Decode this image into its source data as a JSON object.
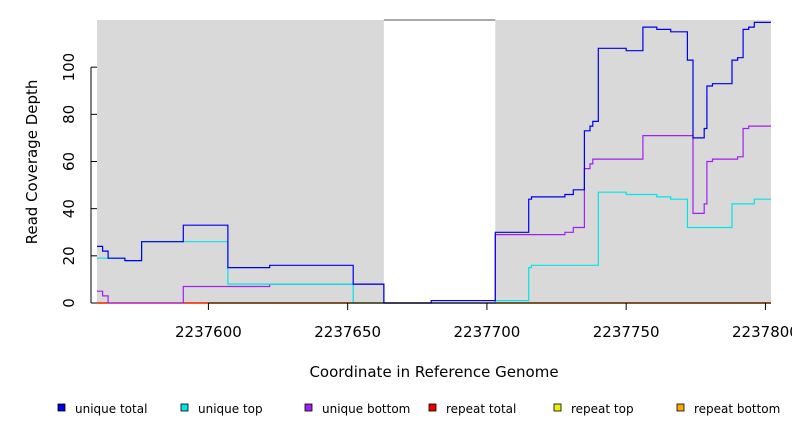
{
  "chart_data": {
    "type": "line",
    "step": true,
    "title": "",
    "xlabel": "Coordinate in Reference Genome",
    "ylabel": "Read Coverage Depth",
    "xlim": [
      2237560,
      2237802
    ],
    "ylim": [
      0,
      120
    ],
    "xticks": [
      2237600,
      2237650,
      2237700,
      2237750,
      2237800
    ],
    "yticks": [
      0,
      20,
      40,
      60,
      80,
      100
    ],
    "grid": false,
    "background": {
      "panel_color": "#d9d9d9",
      "clear_range": [
        2237663,
        2237703
      ]
    },
    "legend_position": "bottom",
    "series": [
      {
        "name": "unique total",
        "color": "#0000ee",
        "x": [
          2237560,
          2237562,
          2237564,
          2237570,
          2237576,
          2237584,
          2237589,
          2237591,
          2237596,
          2237607,
          2237609,
          2237615,
          2237622,
          2237643,
          2237648,
          2237652,
          2237663,
          2237668,
          2237680,
          2237688,
          2237697,
          2237703,
          2237712,
          2237715,
          2237716,
          2237728,
          2237731,
          2237735,
          2237737,
          2237738,
          2237740,
          2237742,
          2237750,
          2237756,
          2237761,
          2237766,
          2237772,
          2237774,
          2237778,
          2237779,
          2237781,
          2237782,
          2237788,
          2237790,
          2237792,
          2237794,
          2237796,
          2237802
        ],
        "y": [
          24,
          22,
          19,
          18,
          26,
          26,
          26,
          33,
          33,
          15,
          15,
          15,
          16,
          16,
          16,
          8,
          0,
          0,
          1,
          1,
          1,
          30,
          30,
          44,
          45,
          46,
          48,
          73,
          75,
          77,
          108,
          108,
          107,
          117,
          116,
          115,
          103,
          70,
          74,
          92,
          93,
          93,
          103,
          104,
          116,
          117,
          119,
          119
        ]
      },
      {
        "name": "unique top",
        "color": "#00e5e5",
        "x": [
          2237560,
          2237562,
          2237564,
          2237570,
          2237576,
          2237584,
          2237589,
          2237591,
          2237596,
          2237607,
          2237609,
          2237615,
          2237622,
          2237643,
          2237648,
          2237652,
          2237663,
          2237668,
          2237680,
          2237688,
          2237697,
          2237703,
          2237712,
          2237715,
          2237716,
          2237728,
          2237731,
          2237735,
          2237737,
          2237738,
          2237740,
          2237742,
          2237750,
          2237756,
          2237761,
          2237766,
          2237772,
          2237774,
          2237778,
          2237779,
          2237781,
          2237782,
          2237788,
          2237790,
          2237792,
          2237794,
          2237796,
          2237802
        ],
        "y": [
          19,
          19,
          19,
          18,
          26,
          26,
          26,
          26,
          26,
          8,
          8,
          8,
          8,
          8,
          8,
          0,
          0,
          0,
          0,
          0,
          0,
          1,
          1,
          15,
          16,
          16,
          16,
          16,
          16,
          16,
          47,
          47,
          46,
          46,
          45,
          44,
          32,
          32,
          32,
          32,
          32,
          32,
          42,
          42,
          42,
          42,
          44,
          44
        ]
      },
      {
        "name": "unique bottom",
        "color": "#a020f0",
        "x": [
          2237560,
          2237562,
          2237564,
          2237570,
          2237576,
          2237584,
          2237589,
          2237591,
          2237596,
          2237607,
          2237609,
          2237615,
          2237622,
          2237643,
          2237648,
          2237652,
          2237663,
          2237668,
          2237680,
          2237688,
          2237697,
          2237703,
          2237712,
          2237715,
          2237716,
          2237728,
          2237731,
          2237735,
          2237737,
          2237738,
          2237740,
          2237742,
          2237750,
          2237756,
          2237761,
          2237766,
          2237772,
          2237774,
          2237778,
          2237779,
          2237781,
          2237782,
          2237788,
          2237790,
          2237792,
          2237794,
          2237796,
          2237802
        ],
        "y": [
          5,
          3,
          0,
          0,
          0,
          0,
          0,
          7,
          7,
          7,
          7,
          7,
          8,
          8,
          8,
          8,
          0,
          0,
          0,
          0,
          0,
          29,
          29,
          29,
          29,
          30,
          32,
          57,
          59,
          61,
          61,
          61,
          61,
          71,
          71,
          71,
          71,
          38,
          42,
          60,
          61,
          61,
          61,
          62,
          74,
          75,
          75,
          75
        ]
      },
      {
        "name": "repeat total",
        "color": "#ee0000",
        "x": [
          2237560,
          2237802
        ],
        "y": [
          0,
          0
        ]
      },
      {
        "name": "repeat top",
        "color": "#eeee00",
        "x": [
          2237560,
          2237802
        ],
        "y": [
          0,
          0
        ]
      },
      {
        "name": "repeat bottom",
        "color": "#ffa500",
        "x": [
          2237560,
          2237802
        ],
        "y": [
          0,
          0
        ]
      }
    ]
  }
}
